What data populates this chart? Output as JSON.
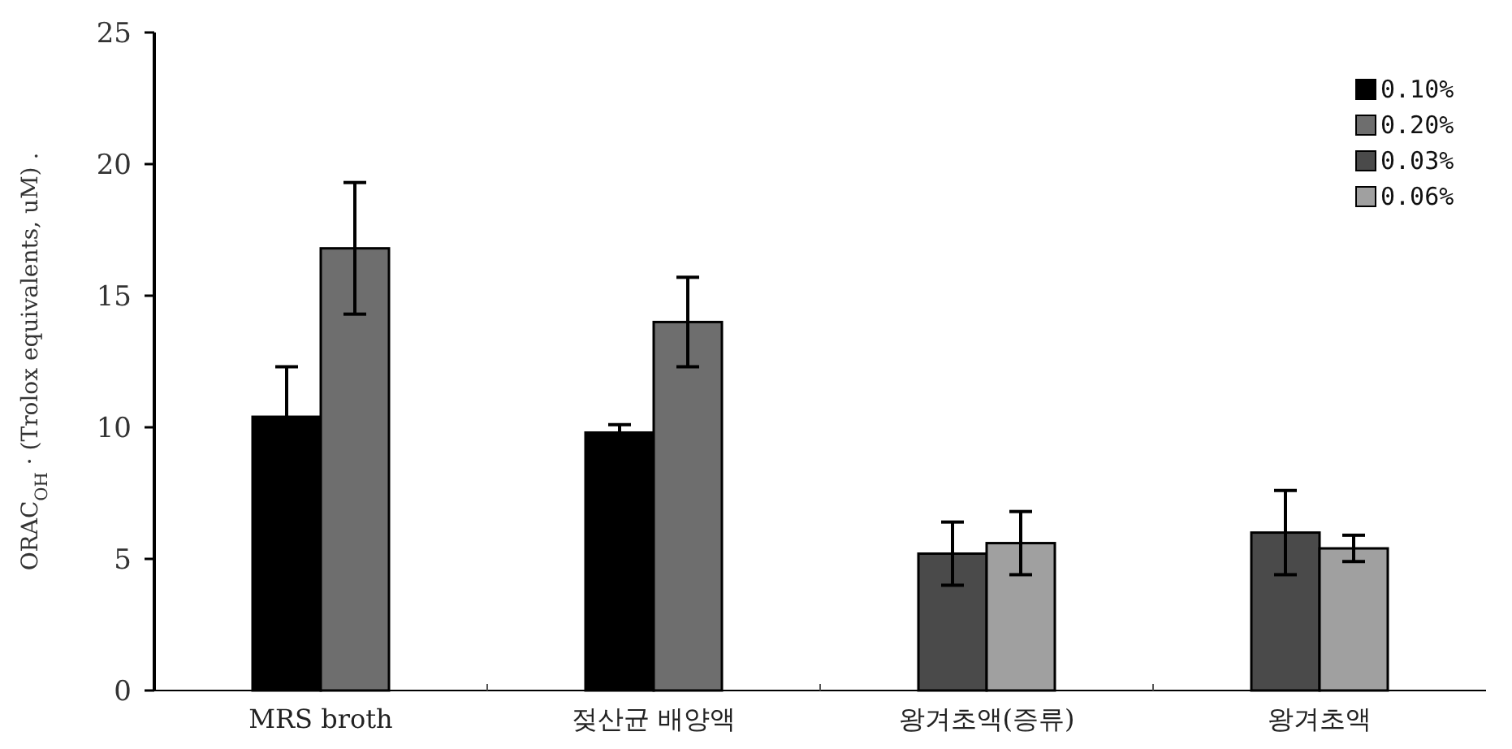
{
  "chart_data": {
    "type": "bar",
    "ylabel": "ORAC$_{OH}$ · (Trolox equivalents, uM) .",
    "categories": [
      "MRS broth",
      "젖산균 배양액",
      "왕겨초액(증류)",
      "왕겨초액"
    ],
    "series": [
      {
        "name": "0.10%",
        "color": "#000000",
        "values": [
          10.4,
          9.8,
          null,
          null
        ],
        "errors": [
          1.9,
          0.3,
          null,
          null
        ]
      },
      {
        "name": "0.20%",
        "color": "#6e6e6e",
        "values": [
          16.8,
          14.0,
          null,
          null
        ],
        "errors": [
          2.5,
          1.7,
          null,
          null
        ]
      },
      {
        "name": "0.03%",
        "color": "#4a4a4a",
        "values": [
          null,
          null,
          5.2,
          6.0
        ],
        "errors": [
          null,
          null,
          1.2,
          1.6
        ]
      },
      {
        "name": "0.06%",
        "color": "#a0a0a0",
        "values": [
          null,
          null,
          5.6,
          5.4
        ],
        "errors": [
          null,
          null,
          1.2,
          0.5
        ]
      }
    ],
    "ylim": [
      0,
      25
    ],
    "yticks": [
      0,
      5,
      10,
      15,
      20,
      25
    ],
    "legend": "top right",
    "grid": false
  }
}
